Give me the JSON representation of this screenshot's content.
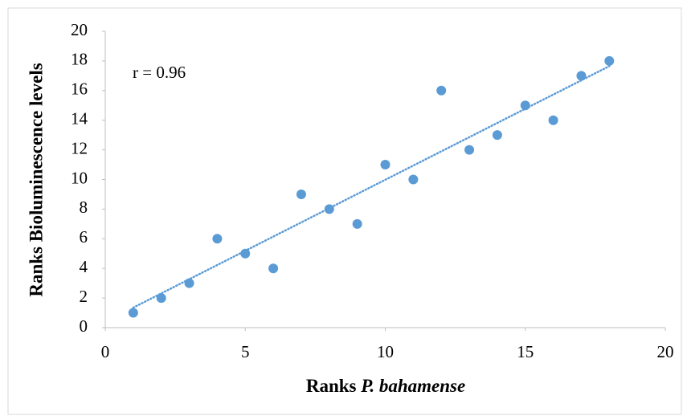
{
  "chart_data": {
    "type": "scatter",
    "xlabel": [
      "Ranks",
      "P. bahamense"
    ],
    "ylabel": "Ranks Bioluminescence levels",
    "annotation": "r = 0.96",
    "color": "#5b9bd5",
    "trendline": true,
    "x": [
      1,
      2,
      3,
      4,
      5,
      6,
      7,
      8,
      9,
      10,
      11,
      12,
      13,
      14,
      15,
      16,
      17,
      18
    ],
    "values": [
      1,
      2,
      3,
      6,
      5,
      4,
      9,
      8,
      7,
      11,
      10,
      16,
      12,
      13,
      15,
      14,
      17,
      18
    ],
    "xlim": [
      0,
      20
    ],
    "xticks": [
      0,
      5,
      10,
      15,
      20
    ],
    "ylim": [
      0,
      20
    ],
    "yticks": [
      0,
      2,
      4,
      6,
      8,
      10,
      12,
      14,
      16,
      18,
      20
    ]
  }
}
